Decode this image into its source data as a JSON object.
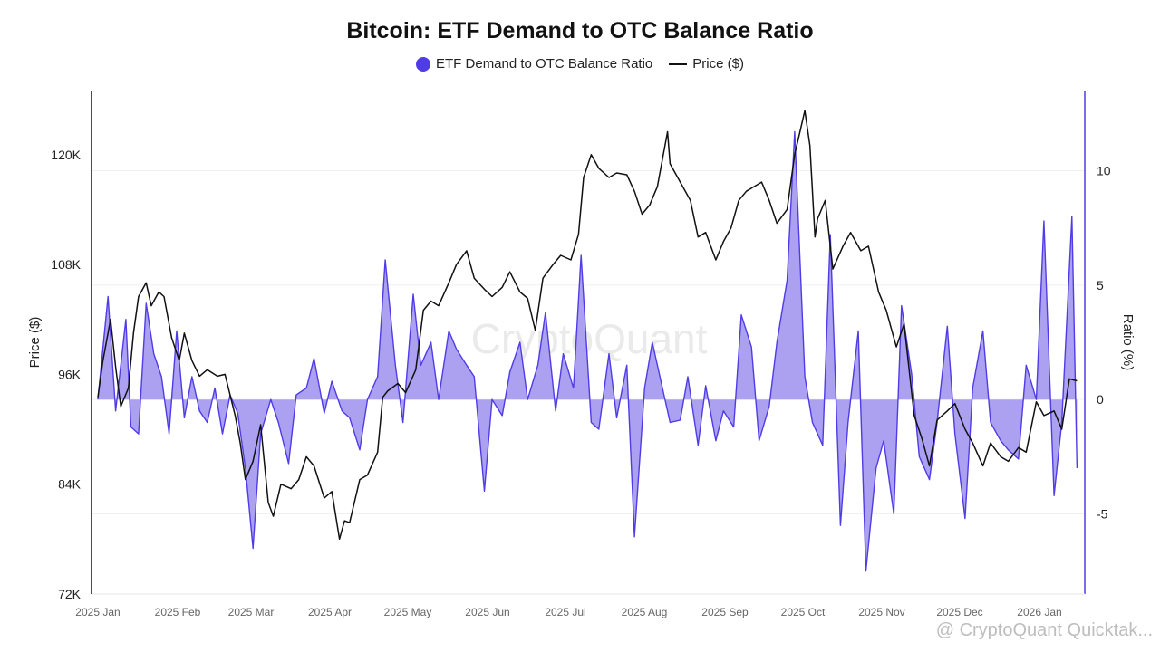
{
  "chart_data": {
    "type": "line",
    "title": "Bitcoin: ETF Demand to OTC Balance Ratio",
    "ylabel_left": "Price ($)",
    "ylabel_right": "Ratio (%)",
    "x_tick_labels": [
      "2025 Jan",
      "2025 Feb",
      "2025 Mar",
      "2025 Apr",
      "2025 May",
      "2025 Jun",
      "2025 Jul",
      "2025 Aug",
      "2025 Sep",
      "2025 Oct",
      "2025 Nov",
      "2025 Dec",
      "2026 Jan"
    ],
    "y_left_ticks": [
      {
        "value": 72000,
        "label": "72K"
      },
      {
        "value": 84000,
        "label": "84K"
      },
      {
        "value": 96000,
        "label": "96K"
      },
      {
        "value": 108000,
        "label": "108K"
      },
      {
        "value": 120000,
        "label": "120K"
      }
    ],
    "y_right_ticks": [
      {
        "value": -5,
        "label": "-5"
      },
      {
        "value": 0,
        "label": "0"
      },
      {
        "value": 5,
        "label": "5"
      },
      {
        "value": 10,
        "label": "10"
      }
    ],
    "ylim_left": [
      72000,
      127000
    ],
    "ylim_right": [
      -8.5,
      13.5
    ],
    "legend_position": "top",
    "watermark": "CryptoQuant",
    "footer_text": "@ CryptoQuant Quicktak...",
    "series": [
      {
        "name": "ETF Demand to OTC Balance Ratio",
        "axis": "right",
        "kind": "area",
        "color": "#4f3ce6",
        "fill": "#a89cf0",
        "x": [
          "2025-01-01",
          "2025-01-05",
          "2025-01-08",
          "2025-01-12",
          "2025-01-14",
          "2025-01-17",
          "2025-01-20",
          "2025-01-23",
          "2025-01-26",
          "2025-01-29",
          "2025-02-01",
          "2025-02-04",
          "2025-02-07",
          "2025-02-10",
          "2025-02-13",
          "2025-02-16",
          "2025-02-19",
          "2025-02-22",
          "2025-02-25",
          "2025-02-28",
          "2025-03-03",
          "2025-03-06",
          "2025-03-10",
          "2025-03-13",
          "2025-03-17",
          "2025-03-20",
          "2025-03-24",
          "2025-03-27",
          "2025-03-31",
          "2025-04-03",
          "2025-04-07",
          "2025-04-10",
          "2025-04-14",
          "2025-04-17",
          "2025-04-21",
          "2025-04-24",
          "2025-04-28",
          "2025-05-01",
          "2025-05-05",
          "2025-05-08",
          "2025-05-12",
          "2025-05-15",
          "2025-05-19",
          "2025-05-22",
          "2025-05-26",
          "2025-05-29",
          "2025-06-02",
          "2025-06-05",
          "2025-06-09",
          "2025-06-12",
          "2025-06-16",
          "2025-06-19",
          "2025-06-23",
          "2025-06-26",
          "2025-06-30",
          "2025-07-03",
          "2025-07-07",
          "2025-07-10",
          "2025-07-14",
          "2025-07-17",
          "2025-07-21",
          "2025-07-24",
          "2025-07-28",
          "2025-07-31",
          "2025-08-04",
          "2025-08-07",
          "2025-08-11",
          "2025-08-14",
          "2025-08-18",
          "2025-08-21",
          "2025-08-25",
          "2025-08-28",
          "2025-09-01",
          "2025-09-04",
          "2025-09-08",
          "2025-09-11",
          "2025-09-15",
          "2025-09-18",
          "2025-09-22",
          "2025-09-25",
          "2025-09-29",
          "2025-10-02",
          "2025-10-06",
          "2025-10-09",
          "2025-10-13",
          "2025-10-16",
          "2025-10-20",
          "2025-10-23",
          "2025-10-27",
          "2025-10-30",
          "2025-11-03",
          "2025-11-06",
          "2025-11-10",
          "2025-11-13",
          "2025-11-17",
          "2025-11-20",
          "2025-11-24",
          "2025-11-27",
          "2025-12-01",
          "2025-12-04",
          "2025-12-08",
          "2025-12-11",
          "2025-12-15",
          "2025-12-18",
          "2025-12-22",
          "2025-12-25",
          "2025-12-29",
          "2026-01-01",
          "2026-01-05",
          "2026-01-08",
          "2026-01-12",
          "2026-01-15",
          "2026-01-19",
          "2026-01-21"
        ],
        "values": [
          0.0,
          4.5,
          -0.5,
          3.5,
          -1.2,
          -1.5,
          4.2,
          2.0,
          1.0,
          -1.5,
          3.0,
          -0.8,
          1.0,
          -0.5,
          -1.0,
          0.5,
          -1.5,
          0.2,
          -0.6,
          -3.0,
          -6.5,
          -1.5,
          0.0,
          -1.0,
          -2.8,
          0.2,
          0.5,
          1.8,
          -0.6,
          0.8,
          -0.5,
          -0.8,
          -2.2,
          0.0,
          1.0,
          6.1,
          1.5,
          -1.0,
          4.6,
          1.5,
          2.5,
          0.0,
          3.0,
          2.2,
          1.5,
          1.0,
          -4.0,
          0.0,
          -0.7,
          1.2,
          2.5,
          0.0,
          1.5,
          3.8,
          -0.5,
          2.0,
          0.5,
          6.3,
          -1.0,
          -1.3,
          2.0,
          -0.8,
          1.5,
          -6.0,
          0.5,
          2.5,
          0.5,
          -1.0,
          -0.9,
          1.0,
          -2.0,
          0.6,
          -1.8,
          -0.5,
          -1.2,
          3.7,
          2.3,
          -1.8,
          -0.3,
          2.5,
          5.2,
          11.7,
          1.0,
          -1.0,
          -2.0,
          7.2,
          -5.5,
          -1.0,
          3.0,
          -7.5,
          -3.0,
          -1.8,
          -5.0,
          4.1,
          1.1,
          -2.5,
          -3.5,
          -1.0,
          3.2,
          -1.5,
          -5.2,
          0.5,
          3.0,
          -1.0,
          -1.8,
          -2.2,
          -2.6,
          1.5,
          0.0,
          7.8,
          -4.2,
          -1.0,
          8.0,
          -3.0
        ]
      },
      {
        "name": "Price ($)",
        "axis": "left",
        "kind": "line",
        "color": "#111111",
        "x": [
          "2025-01-01",
          "2025-01-03",
          "2025-01-06",
          "2025-01-08",
          "2025-01-10",
          "2025-01-13",
          "2025-01-15",
          "2025-01-17",
          "2025-01-20",
          "2025-01-22",
          "2025-01-25",
          "2025-01-27",
          "2025-01-30",
          "2025-02-02",
          "2025-02-04",
          "2025-02-07",
          "2025-02-10",
          "2025-02-13",
          "2025-02-17",
          "2025-02-20",
          "2025-02-24",
          "2025-02-26",
          "2025-02-28",
          "2025-03-03",
          "2025-03-06",
          "2025-03-09",
          "2025-03-11",
          "2025-03-14",
          "2025-03-18",
          "2025-03-21",
          "2025-03-24",
          "2025-03-27",
          "2025-03-31",
          "2025-04-03",
          "2025-04-06",
          "2025-04-08",
          "2025-04-10",
          "2025-04-14",
          "2025-04-17",
          "2025-04-21",
          "2025-04-23",
          "2025-04-25",
          "2025-04-29",
          "2025-05-02",
          "2025-05-06",
          "2025-05-09",
          "2025-05-12",
          "2025-05-15",
          "2025-05-19",
          "2025-05-22",
          "2025-05-26",
          "2025-05-29",
          "2025-06-02",
          "2025-06-05",
          "2025-06-09",
          "2025-06-12",
          "2025-06-16",
          "2025-06-19",
          "2025-06-22",
          "2025-06-25",
          "2025-06-29",
          "2025-07-02",
          "2025-07-06",
          "2025-07-09",
          "2025-07-11",
          "2025-07-14",
          "2025-07-17",
          "2025-07-21",
          "2025-07-24",
          "2025-07-28",
          "2025-07-31",
          "2025-08-03",
          "2025-08-06",
          "2025-08-09",
          "2025-08-13",
          "2025-08-14",
          "2025-08-17",
          "2025-08-19",
          "2025-08-22",
          "2025-08-25",
          "2025-08-28",
          "2025-09-01",
          "2025-09-04",
          "2025-09-07",
          "2025-09-10",
          "2025-09-13",
          "2025-09-16",
          "2025-09-19",
          "2025-09-22",
          "2025-09-25",
          "2025-09-29",
          "2025-10-02",
          "2025-10-06",
          "2025-10-08",
          "2025-10-10",
          "2025-10-11",
          "2025-10-14",
          "2025-10-17",
          "2025-10-21",
          "2025-10-24",
          "2025-10-28",
          "2025-10-31",
          "2025-11-04",
          "2025-11-07",
          "2025-11-11",
          "2025-11-14",
          "2025-11-18",
          "2025-11-21",
          "2025-11-24",
          "2025-11-27",
          "2025-12-01",
          "2025-12-04",
          "2025-12-08",
          "2025-12-11",
          "2025-12-15",
          "2025-12-18",
          "2025-12-22",
          "2025-12-25",
          "2025-12-29",
          "2026-01-01",
          "2026-01-05",
          "2026-01-08",
          "2026-01-12",
          "2026-01-15",
          "2026-01-18",
          "2026-01-21"
        ],
        "values": [
          93500,
          97500,
          102000,
          96800,
          92500,
          94500,
          100500,
          104500,
          106000,
          103500,
          105000,
          104500,
          100000,
          97500,
          100500,
          97500,
          95800,
          96500,
          95800,
          96000,
          91500,
          88500,
          84500,
          86500,
          90500,
          82000,
          80500,
          84000,
          83500,
          84500,
          87000,
          86000,
          82500,
          83200,
          78000,
          80000,
          79800,
          84500,
          85000,
          87500,
          93500,
          94200,
          95000,
          94000,
          96500,
          103000,
          104000,
          103500,
          106000,
          108000,
          109500,
          106500,
          105300,
          104500,
          105500,
          107200,
          105000,
          104300,
          100800,
          106500,
          108000,
          109000,
          108500,
          111300,
          117500,
          120000,
          118500,
          117500,
          118000,
          117800,
          116000,
          113500,
          114500,
          116500,
          122500,
          119000,
          117500,
          116500,
          115000,
          111000,
          111500,
          108500,
          110500,
          112000,
          115000,
          116000,
          116500,
          117000,
          115000,
          112500,
          114000,
          120000,
          124800,
          121000,
          111000,
          113000,
          115000,
          107500,
          110000,
          111500,
          109500,
          110000,
          105000,
          103000,
          99000,
          101500,
          91500,
          89000,
          86000,
          91000,
          92000,
          92800,
          90000,
          88500,
          86000,
          88500,
          87000,
          86500,
          88000,
          87500,
          93000,
          91500,
          92000,
          90000,
          95500,
          95300
        ]
      }
    ]
  }
}
